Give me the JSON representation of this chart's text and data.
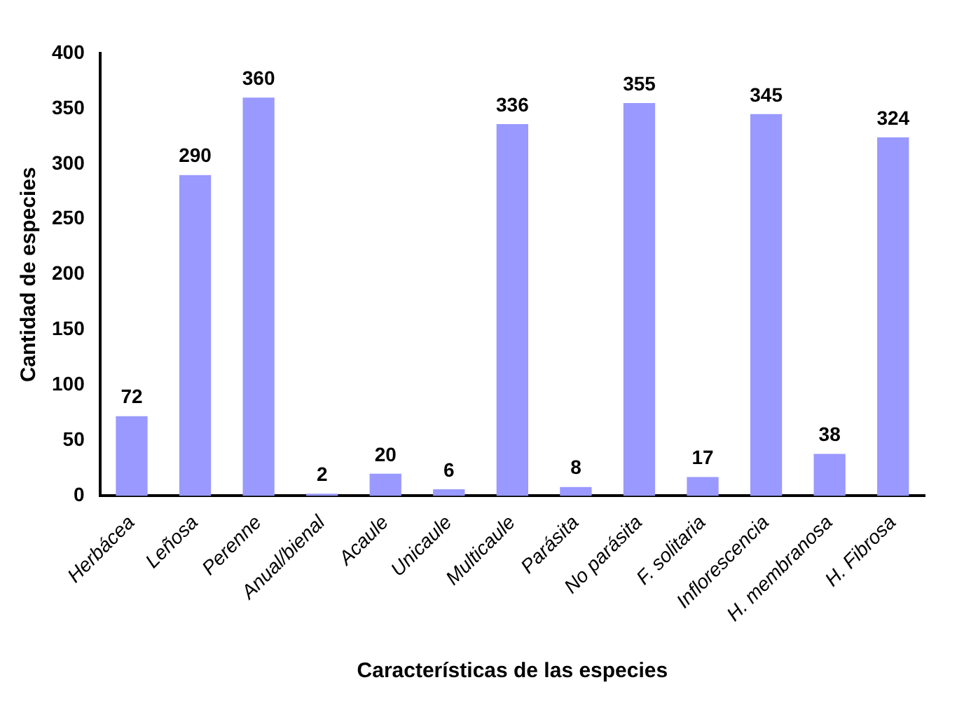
{
  "chart_data": {
    "type": "bar",
    "xlabel": "Características de las especies",
    "ylabel": "Cantidad de especies",
    "categories": [
      "Herbácea",
      "Leñosa",
      "Perenne",
      "Anual/bienal",
      "Acaule",
      "Unicaule",
      "Multicaule",
      "Parásita",
      "No parásita",
      "F. solitaria",
      "Inflorescencia",
      "H. membranosa",
      "H. Fibrosa"
    ],
    "values": [
      72,
      290,
      360,
      2,
      20,
      6,
      336,
      8,
      355,
      17,
      345,
      38,
      324
    ],
    "color": "#9999ff",
    "ylim": [
      0,
      400
    ],
    "yticks": [
      0,
      50,
      100,
      150,
      200,
      250,
      300,
      350,
      400
    ],
    "grid": false,
    "legend": false,
    "data_labels": true
  }
}
